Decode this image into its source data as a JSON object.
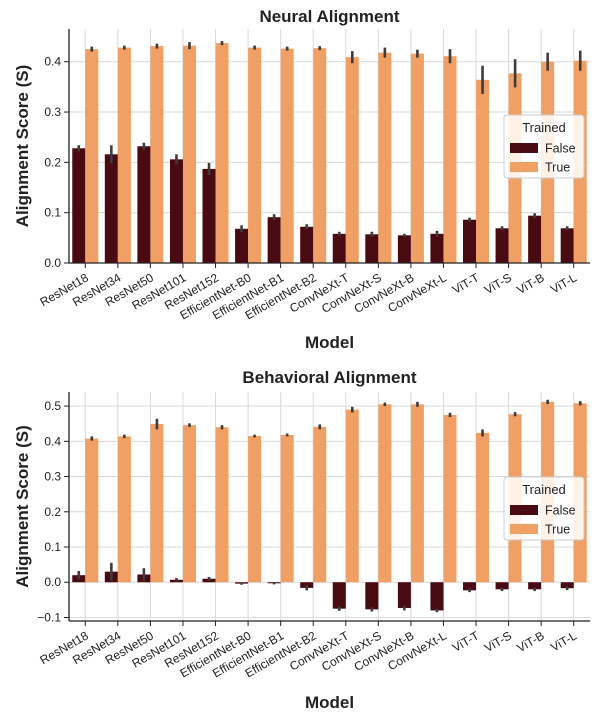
{
  "chart_data": [
    {
      "type": "bar",
      "title": "Neural Alignment",
      "xlabel": "Model",
      "ylabel": "Alignment Score (S)",
      "ylim": [
        0,
        0.465
      ],
      "yticks": [
        "0.0",
        "0.1",
        "0.2",
        "0.3",
        "0.4"
      ],
      "ytick_values": [
        0,
        0.1,
        0.2,
        0.3,
        0.4
      ],
      "grid": true,
      "categories": [
        "ResNet18",
        "ResNet34",
        "ResNet50",
        "ResNet101",
        "ResNet152",
        "EfficientNet-B0",
        "EfficientNet-B1",
        "EfficientNet-B2",
        "ConvNeXt-T",
        "ConvNeXt-S",
        "ConvNeXt-B",
        "ConvNeXt-L",
        "ViT-T",
        "ViT-S",
        "ViT-B",
        "ViT-L"
      ],
      "legend": {
        "title": "Trained",
        "position": "right"
      },
      "series": [
        {
          "name": "False",
          "color": "#4a0a12",
          "values": [
            0.228,
            0.216,
            0.232,
            0.206,
            0.187,
            0.068,
            0.091,
            0.072,
            0.058,
            0.057,
            0.055,
            0.058,
            0.086,
            0.069,
            0.094,
            0.069
          ],
          "err": [
            0.006,
            0.018,
            0.007,
            0.01,
            0.012,
            0.007,
            0.006,
            0.005,
            0.004,
            0.005,
            0.003,
            0.006,
            0.004,
            0.004,
            0.005,
            0.004
          ]
        },
        {
          "name": "True",
          "color": "#f0a064",
          "values": [
            0.425,
            0.428,
            0.431,
            0.432,
            0.437,
            0.428,
            0.426,
            0.427,
            0.409,
            0.418,
            0.416,
            0.411,
            0.364,
            0.377,
            0.4,
            0.402
          ],
          "err": [
            0.005,
            0.004,
            0.005,
            0.007,
            0.004,
            0.004,
            0.004,
            0.004,
            0.012,
            0.01,
            0.008,
            0.014,
            0.028,
            0.028,
            0.018,
            0.02
          ]
        }
      ]
    },
    {
      "type": "bar",
      "title": "Behavioral Alignment",
      "xlabel": "Model",
      "ylabel": "Alignment Score (S)",
      "ylim": [
        -0.11,
        0.54
      ],
      "yticks": [
        "−0.1",
        "0.0",
        "0.1",
        "0.2",
        "0.3",
        "0.4",
        "0.5"
      ],
      "ytick_values": [
        -0.1,
        0,
        0.1,
        0.2,
        0.3,
        0.4,
        0.5
      ],
      "grid": true,
      "categories": [
        "ResNet18",
        "ResNet34",
        "ResNet50",
        "ResNet101",
        "ResNet152",
        "EfficientNet-B0",
        "EfficientNet-B1",
        "EfficientNet-B2",
        "ConvNeXt-T",
        "ConvNeXt-S",
        "ConvNeXt-B",
        "ConvNeXt-L",
        "ViT-T",
        "ViT-S",
        "ViT-B",
        "ViT-L"
      ],
      "legend": {
        "title": "Trained",
        "position": "right"
      },
      "series": [
        {
          "name": "False",
          "color": "#4a0a12",
          "values": [
            0.02,
            0.03,
            0.022,
            0.007,
            0.01,
            -0.004,
            -0.003,
            -0.016,
            -0.075,
            -0.077,
            -0.073,
            -0.08,
            -0.023,
            -0.02,
            -0.02,
            -0.017
          ],
          "err": [
            0.012,
            0.025,
            0.018,
            0.005,
            0.005,
            0.003,
            0.003,
            0.007,
            0.006,
            0.006,
            0.007,
            0.005,
            0.005,
            0.005,
            0.005,
            0.005
          ]
        },
        {
          "name": "True",
          "color": "#f0a064",
          "values": [
            0.408,
            0.414,
            0.449,
            0.446,
            0.44,
            0.415,
            0.418,
            0.441,
            0.49,
            0.505,
            0.505,
            0.475,
            0.424,
            0.477,
            0.512,
            0.508
          ],
          "err": [
            0.006,
            0.005,
            0.015,
            0.005,
            0.006,
            0.004,
            0.004,
            0.007,
            0.008,
            0.005,
            0.007,
            0.006,
            0.01,
            0.006,
            0.006,
            0.006
          ]
        }
      ]
    }
  ]
}
